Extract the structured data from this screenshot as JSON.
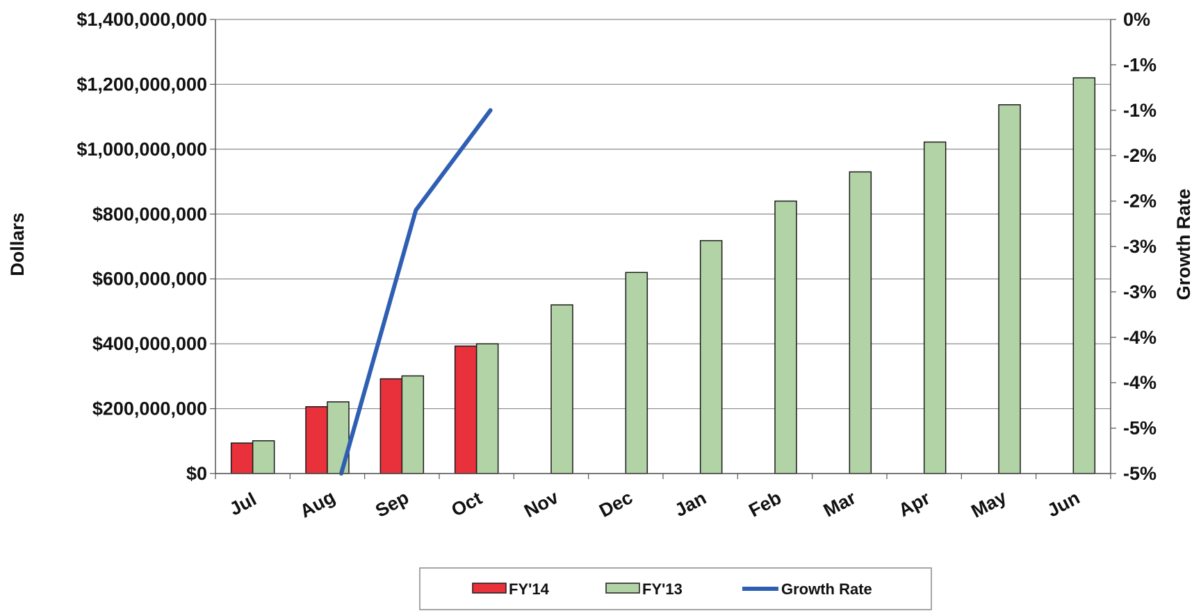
{
  "chart_data": {
    "type": "bar",
    "categories": [
      "Jul",
      "Aug",
      "Sep",
      "Oct",
      "Nov",
      "Dec",
      "Jan",
      "Feb",
      "Mar",
      "Apr",
      "May",
      "Jun"
    ],
    "series": [
      {
        "name": "FY'14",
        "kind": "bar",
        "axis": "left",
        "color": "#e8313a",
        "values": [
          94000000,
          206000000,
          292000000,
          393000000,
          null,
          null,
          null,
          null,
          null,
          null,
          null,
          null
        ]
      },
      {
        "name": "FY'13",
        "kind": "bar",
        "axis": "left",
        "color": "#b2d3a6",
        "values": [
          101000000,
          221000000,
          301000000,
          400000000,
          520000000,
          620000000,
          718000000,
          840000000,
          930000000,
          1022000000,
          1137000000,
          1220000000
        ]
      },
      {
        "name": "Growth Rate",
        "kind": "line",
        "axis": "right",
        "color": "#2f5fb3",
        "values": [
          null,
          -5.0,
          -2.1,
          -1.0,
          null,
          null,
          null,
          null,
          null,
          null,
          null,
          null
        ]
      }
    ],
    "ylabel": "Dollars",
    "y2label": "Growth Rate",
    "ylim": [
      0,
      1400000000
    ],
    "y2lim": [
      -5,
      0
    ],
    "yticks": [
      "$0",
      "$200,000,000",
      "$400,000,000",
      "$600,000,000",
      "$800,000,000",
      "$1,000,000,000",
      "$1,200,000,000",
      "$1,400,000,000"
    ],
    "y2ticks": [
      "-5%",
      "-5%",
      "-4%",
      "-4%",
      "-3%",
      "-3%",
      "-2%",
      "-2%",
      "-1%",
      "-1%",
      "0%"
    ],
    "grid": true,
    "legend_position": "bottom"
  }
}
